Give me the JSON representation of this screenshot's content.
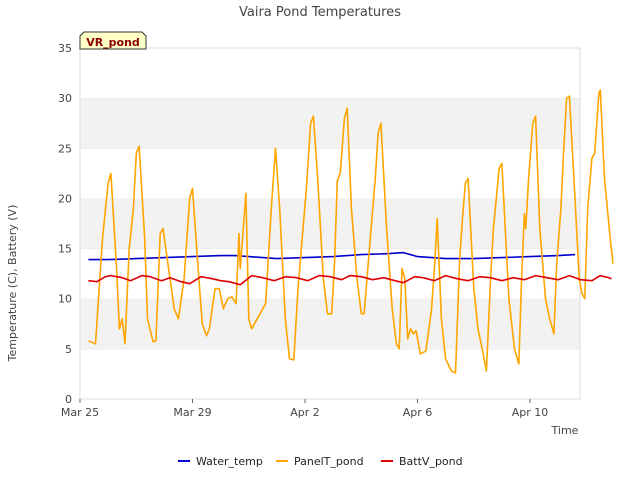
{
  "chart_data": {
    "type": "line",
    "title": "Vaira Pond Temperatures",
    "badge": "VR_pond",
    "xlabel": "Time",
    "ylabel": "Temperature (C), Battery (V)",
    "ylim": [
      0,
      35
    ],
    "yticks": [
      0,
      5,
      10,
      15,
      20,
      25,
      30,
      35
    ],
    "xlim": [
      0,
      18
    ],
    "x_unit": "days since Mar 25",
    "xticks": [
      {
        "x": 0,
        "label": "Mar 25"
      },
      {
        "x": 4,
        "label": "Mar 29"
      },
      {
        "x": 8,
        "label": "Apr 2"
      },
      {
        "x": 12,
        "label": "Apr 6"
      },
      {
        "x": 16,
        "label": "Apr 10"
      }
    ],
    "grid": "horizontal bands",
    "legend_position": "bottom",
    "series": [
      {
        "name": "Water_temp",
        "color": "#0000cc",
        "points": [
          [
            0.3,
            13.9
          ],
          [
            1.0,
            13.9
          ],
          [
            2.0,
            14.0
          ],
          [
            3.0,
            14.1
          ],
          [
            4.0,
            14.2
          ],
          [
            5.0,
            14.3
          ],
          [
            5.5,
            14.3
          ],
          [
            6.0,
            14.2
          ],
          [
            7.0,
            14.0
          ],
          [
            8.0,
            14.1
          ],
          [
            9.0,
            14.2
          ],
          [
            10.0,
            14.4
          ],
          [
            11.0,
            14.5
          ],
          [
            11.5,
            14.6
          ],
          [
            12.0,
            14.2
          ],
          [
            13.0,
            14.0
          ],
          [
            14.0,
            14.0
          ],
          [
            15.0,
            14.1
          ],
          [
            16.0,
            14.2
          ],
          [
            17.0,
            14.3
          ],
          [
            17.6,
            14.4
          ]
        ]
      },
      {
        "name": "PanelT_pond",
        "color": "#ffa500",
        "points": [
          [
            0.3,
            5.8
          ],
          [
            0.55,
            5.5
          ],
          [
            0.8,
            16.0
          ],
          [
            1.0,
            21.5
          ],
          [
            1.1,
            22.5
          ],
          [
            1.3,
            13.0
          ],
          [
            1.4,
            7.0
          ],
          [
            1.5,
            8.0
          ],
          [
            1.6,
            5.5
          ],
          [
            1.75,
            15.0
          ],
          [
            1.9,
            19.0
          ],
          [
            2.0,
            24.5
          ],
          [
            2.1,
            25.2
          ],
          [
            2.3,
            16.0
          ],
          [
            2.4,
            8.0
          ],
          [
            2.6,
            5.7
          ],
          [
            2.7,
            5.8
          ],
          [
            2.85,
            16.5
          ],
          [
            2.95,
            17.0
          ],
          [
            3.15,
            13.0
          ],
          [
            3.35,
            9.0
          ],
          [
            3.5,
            8.0
          ],
          [
            3.7,
            12.0
          ],
          [
            3.8,
            16.0
          ],
          [
            3.9,
            20.0
          ],
          [
            4.0,
            21.0
          ],
          [
            4.2,
            13.0
          ],
          [
            4.35,
            7.5
          ],
          [
            4.5,
            6.3
          ],
          [
            4.6,
            7.0
          ],
          [
            4.8,
            11.0
          ],
          [
            4.95,
            11.0
          ],
          [
            5.1,
            9.0
          ],
          [
            5.25,
            10.0
          ],
          [
            5.4,
            10.2
          ],
          [
            5.55,
            9.5
          ],
          [
            5.65,
            16.5
          ],
          [
            5.7,
            13.0
          ],
          [
            5.9,
            20.5
          ],
          [
            6.0,
            8.0
          ],
          [
            6.1,
            7.0
          ],
          [
            6.2,
            7.5
          ],
          [
            6.4,
            8.5
          ],
          [
            6.6,
            9.5
          ],
          [
            6.8,
            19.0
          ],
          [
            6.95,
            25.0
          ],
          [
            7.1,
            19.0
          ],
          [
            7.3,
            8.0
          ],
          [
            7.45,
            4.0
          ],
          [
            7.6,
            3.9
          ],
          [
            7.75,
            11.0
          ],
          [
            7.9,
            16.0
          ],
          [
            8.05,
            21.0
          ],
          [
            8.2,
            27.5
          ],
          [
            8.3,
            28.2
          ],
          [
            8.45,
            22.0
          ],
          [
            8.65,
            12.0
          ],
          [
            8.8,
            8.5
          ],
          [
            8.95,
            8.5
          ],
          [
            9.05,
            13.5
          ],
          [
            9.15,
            21.8
          ],
          [
            9.25,
            22.5
          ],
          [
            9.4,
            28.0
          ],
          [
            9.5,
            29.0
          ],
          [
            9.65,
            19.0
          ],
          [
            9.85,
            12.0
          ],
          [
            10.0,
            8.5
          ],
          [
            10.1,
            8.5
          ],
          [
            10.35,
            17.0
          ],
          [
            10.5,
            22.0
          ],
          [
            10.6,
            26.5
          ],
          [
            10.7,
            27.5
          ],
          [
            10.9,
            17.0
          ],
          [
            11.1,
            9.0
          ],
          [
            11.25,
            5.5
          ],
          [
            11.35,
            5.0
          ],
          [
            11.45,
            13.0
          ],
          [
            11.55,
            12.0
          ],
          [
            11.65,
            6.0
          ],
          [
            11.75,
            7.0
          ],
          [
            11.85,
            6.5
          ],
          [
            11.95,
            6.8
          ],
          [
            12.1,
            4.5
          ],
          [
            12.3,
            4.8
          ],
          [
            12.5,
            9.0
          ],
          [
            12.6,
            13.0
          ],
          [
            12.7,
            18.0
          ],
          [
            12.85,
            8.0
          ],
          [
            13.0,
            4.0
          ],
          [
            13.2,
            2.8
          ],
          [
            13.35,
            2.6
          ],
          [
            13.5,
            14.0
          ],
          [
            13.6,
            18.0
          ],
          [
            13.7,
            21.5
          ],
          [
            13.8,
            22.0
          ],
          [
            14.0,
            11.0
          ],
          [
            14.15,
            7.0
          ],
          [
            14.3,
            5.0
          ],
          [
            14.45,
            2.8
          ],
          [
            14.6,
            12.0
          ],
          [
            14.7,
            17.0
          ],
          [
            14.8,
            20.0
          ],
          [
            14.9,
            23.0
          ],
          [
            15.0,
            23.5
          ],
          [
            15.1,
            18.0
          ],
          [
            15.25,
            10.0
          ],
          [
            15.45,
            5.0
          ],
          [
            15.6,
            3.5
          ],
          [
            15.7,
            12.0
          ],
          [
            15.8,
            18.5
          ],
          [
            15.85,
            17.0
          ],
          [
            15.95,
            22.0
          ],
          [
            16.1,
            27.5
          ],
          [
            16.2,
            28.2
          ],
          [
            16.35,
            17.0
          ],
          [
            16.55,
            10.0
          ],
          [
            16.7,
            8.0
          ],
          [
            16.85,
            6.5
          ],
          [
            16.95,
            13.5
          ],
          [
            17.1,
            19.0
          ],
          [
            17.2,
            25.0
          ],
          [
            17.3,
            30.0
          ],
          [
            17.4,
            30.2
          ],
          [
            17.6,
            20.0
          ],
          [
            17.75,
            12.0
          ],
          [
            17.85,
            10.5
          ],
          [
            17.95,
            10.0
          ],
          [
            18.05,
            19.0
          ],
          [
            18.2,
            24.0
          ],
          [
            18.3,
            24.5
          ],
          [
            18.45,
            30.5
          ],
          [
            18.5,
            30.8
          ],
          [
            18.65,
            22.0
          ],
          [
            18.85,
            16.0
          ],
          [
            18.95,
            13.5
          ]
        ]
      },
      {
        "name": "BattV_pond",
        "color": "#dd0000",
        "points": [
          [
            0.3,
            11.8
          ],
          [
            0.6,
            11.7
          ],
          [
            0.9,
            12.2
          ],
          [
            1.1,
            12.3
          ],
          [
            1.5,
            12.1
          ],
          [
            1.8,
            11.8
          ],
          [
            2.2,
            12.3
          ],
          [
            2.5,
            12.2
          ],
          [
            2.9,
            11.8
          ],
          [
            3.2,
            12.1
          ],
          [
            3.6,
            11.7
          ],
          [
            3.9,
            11.5
          ],
          [
            4.3,
            12.2
          ],
          [
            4.7,
            12.0
          ],
          [
            5.0,
            11.8
          ],
          [
            5.3,
            11.7
          ],
          [
            5.7,
            11.4
          ],
          [
            6.1,
            12.3
          ],
          [
            6.5,
            12.1
          ],
          [
            6.9,
            11.8
          ],
          [
            7.3,
            12.2
          ],
          [
            7.7,
            12.1
          ],
          [
            8.1,
            11.8
          ],
          [
            8.5,
            12.3
          ],
          [
            8.9,
            12.2
          ],
          [
            9.3,
            11.9
          ],
          [
            9.6,
            12.3
          ],
          [
            10.0,
            12.2
          ],
          [
            10.4,
            11.9
          ],
          [
            10.8,
            12.1
          ],
          [
            11.2,
            11.8
          ],
          [
            11.5,
            11.6
          ],
          [
            11.9,
            12.2
          ],
          [
            12.2,
            12.1
          ],
          [
            12.6,
            11.8
          ],
          [
            13.0,
            12.3
          ],
          [
            13.4,
            12.0
          ],
          [
            13.8,
            11.8
          ],
          [
            14.2,
            12.2
          ],
          [
            14.6,
            12.1
          ],
          [
            15.0,
            11.8
          ],
          [
            15.4,
            12.1
          ],
          [
            15.8,
            11.9
          ],
          [
            16.2,
            12.3
          ],
          [
            16.6,
            12.1
          ],
          [
            17.0,
            11.9
          ],
          [
            17.4,
            12.3
          ],
          [
            17.8,
            11.9
          ],
          [
            18.2,
            11.8
          ],
          [
            18.5,
            12.3
          ],
          [
            18.8,
            12.1
          ],
          [
            18.9,
            12.0
          ]
        ]
      }
    ]
  }
}
